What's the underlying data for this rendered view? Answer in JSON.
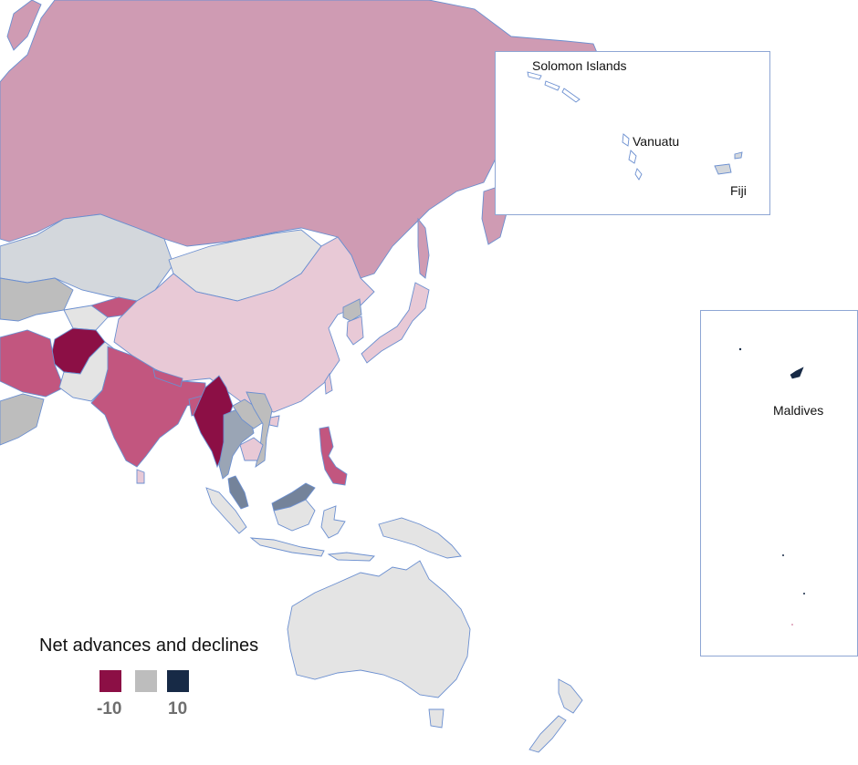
{
  "colors": {
    "strong_decline": "#8c0f45",
    "decline": "#c2567f",
    "moderate_decline": "#cf9bb3",
    "slight_decline": "#e8c9d6",
    "neutral": "#bdbdbd",
    "neutral_light": "#e4e4e4",
    "slight_advance": "#9aa5b5",
    "moderate_advance": "#74839a",
    "strong_advance": "#172a46",
    "border": "#6b8fd0",
    "inset_border": "#8ea6d4"
  },
  "insets": {
    "pacific": {
      "labels": [
        "Solomon Islands",
        "Vanuatu",
        "Fiji"
      ]
    },
    "maldives": {
      "labels": [
        "Maldives"
      ]
    }
  },
  "legend": {
    "title": "Net advances and declines",
    "min_label": "-10",
    "max_label": "10",
    "min_value": -10,
    "max_value": 10,
    "swatches": [
      "#8c0f45",
      "#bdbdbd",
      "#172a46"
    ]
  }
}
